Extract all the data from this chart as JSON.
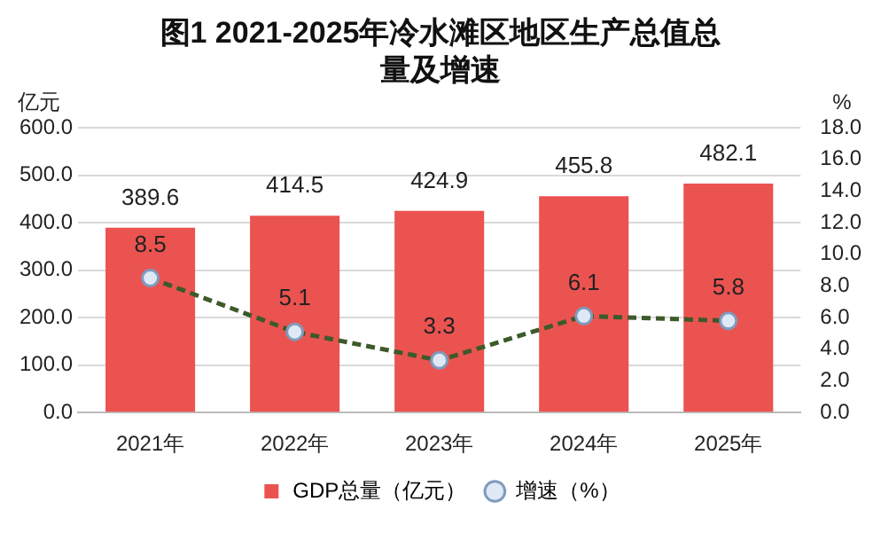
{
  "chart_data": {
    "type": "bar",
    "title": "图1 2021-2025年冷水滩区地区生产总值总量及增速",
    "ylabel": "亿元",
    "y2label": "%",
    "categories": [
      "2021年",
      "2022年",
      "2023年",
      "2024年",
      "2025年"
    ],
    "series": [
      {
        "name": "GDP总量（亿元）",
        "color": "#eb5350",
        "values": [
          389.6,
          414.5,
          424.9,
          455.8,
          482.1
        ]
      },
      {
        "name": "增速（%）",
        "type": "line",
        "axis": "y2",
        "color": "#3d5a2a",
        "values": [
          8.5,
          5.1,
          3.3,
          6.1,
          5.8
        ],
        "marker": "circle",
        "line_style": "dashed"
      }
    ],
    "ylim": [
      0,
      600
    ],
    "yticks": [
      {
        "value": 0,
        "label": "0.0"
      },
      {
        "value": 100,
        "label": "100.0"
      },
      {
        "value": 200,
        "label": "200.0"
      },
      {
        "value": 300,
        "label": "300.0"
      },
      {
        "value": 400,
        "label": "400.0"
      },
      {
        "value": 500,
        "label": "500.0"
      },
      {
        "value": 600,
        "label": "600.0"
      }
    ],
    "y2lim": [
      0,
      18
    ],
    "y2ticks": [
      {
        "value": 0,
        "label": "0.0"
      },
      {
        "value": 2,
        "label": "2.0"
      },
      {
        "value": 4,
        "label": "4.0"
      },
      {
        "value": 6,
        "label": "6.0"
      },
      {
        "value": 8,
        "label": "8.0"
      },
      {
        "value": 10,
        "label": "10.0"
      },
      {
        "value": 12,
        "label": "12.0"
      },
      {
        "value": 14,
        "label": "14.0"
      },
      {
        "value": 16,
        "label": "16.0"
      },
      {
        "value": 18,
        "label": "18.0"
      }
    ],
    "grid": "y",
    "legend": "bottom",
    "data_labels": true
  }
}
